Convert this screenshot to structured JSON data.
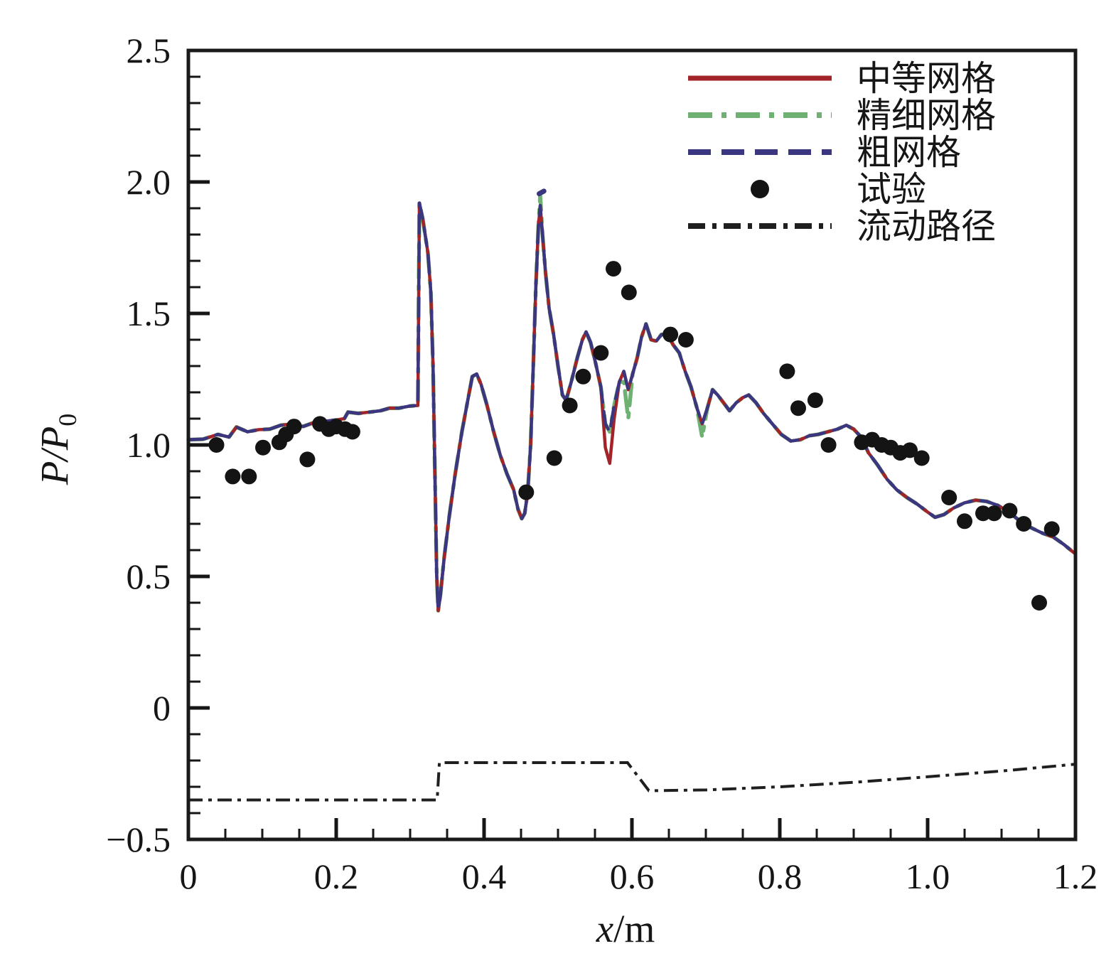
{
  "figure": {
    "background": "#ffffff",
    "frame_color": "#1a1a1a"
  },
  "chart_data": {
    "type": "line",
    "title": "",
    "xlabel": {
      "var": "x",
      "rest": "/m"
    },
    "ylabel": {
      "main": "P/P",
      "sub": "0"
    },
    "xlim": [
      0,
      1.2
    ],
    "ylim": [
      -0.5,
      2.5
    ],
    "grid": "off",
    "legend_position": "top-right-inside",
    "x_tick_labels": [
      {
        "v": 0,
        "t": "0"
      },
      {
        "v": 0.2,
        "t": "0.2"
      },
      {
        "v": 0.4,
        "t": "0.4"
      },
      {
        "v": 0.6,
        "t": "0.6"
      },
      {
        "v": 0.8,
        "t": "0.8"
      },
      {
        "v": 1.0,
        "t": "1.0"
      },
      {
        "v": 1.2,
        "t": "1.2"
      }
    ],
    "y_tick_labels": [
      {
        "v": 2.5,
        "t": "2.5"
      },
      {
        "v": 2.0,
        "t": "2.0"
      },
      {
        "v": 1.5,
        "t": "1.5"
      },
      {
        "v": 1.0,
        "t": "1.0"
      },
      {
        "v": 0.5,
        "t": "0.5"
      },
      {
        "v": 0,
        "t": "0"
      },
      {
        "v": -0.5,
        "t": "−0.5"
      }
    ],
    "x_minor_step": 0.05,
    "y_minor_step": 0.1,
    "base_curve": [
      [
        0.0,
        1.02
      ],
      [
        0.02,
        1.022
      ],
      [
        0.04,
        1.04
      ],
      [
        0.055,
        1.03
      ],
      [
        0.065,
        1.068
      ],
      [
        0.08,
        1.05
      ],
      [
        0.095,
        1.058
      ],
      [
        0.11,
        1.06
      ],
      [
        0.125,
        1.075
      ],
      [
        0.14,
        1.08
      ],
      [
        0.155,
        1.07
      ],
      [
        0.17,
        1.085
      ],
      [
        0.185,
        1.09
      ],
      [
        0.2,
        1.095
      ],
      [
        0.211,
        1.1
      ],
      [
        0.216,
        1.125
      ],
      [
        0.23,
        1.12
      ],
      [
        0.245,
        1.125
      ],
      [
        0.26,
        1.13
      ],
      [
        0.272,
        1.14
      ],
      [
        0.285,
        1.14
      ],
      [
        0.3,
        1.148
      ],
      [
        0.3105,
        1.15
      ],
      [
        0.3125,
        1.92
      ],
      [
        0.317,
        1.86
      ],
      [
        0.324,
        1.73
      ],
      [
        0.328,
        1.58
      ],
      [
        0.331,
        1.3
      ],
      [
        0.3335,
        0.9
      ],
      [
        0.336,
        0.5
      ],
      [
        0.338,
        0.37
      ],
      [
        0.341,
        0.43
      ],
      [
        0.346,
        0.57
      ],
      [
        0.353,
        0.73
      ],
      [
        0.361,
        0.89
      ],
      [
        0.37,
        1.05
      ],
      [
        0.378,
        1.17
      ],
      [
        0.384,
        1.26
      ],
      [
        0.39,
        1.27
      ],
      [
        0.396,
        1.23
      ],
      [
        0.404,
        1.15
      ],
      [
        0.413,
        1.05
      ],
      [
        0.422,
        0.96
      ],
      [
        0.431,
        0.89
      ],
      [
        0.44,
        0.83
      ],
      [
        0.446,
        0.755
      ],
      [
        0.451,
        0.72
      ],
      [
        0.455,
        0.74
      ],
      [
        0.459,
        0.82
      ],
      [
        0.463,
        1.0
      ],
      [
        0.4665,
        1.3
      ],
      [
        0.47,
        1.6
      ],
      [
        0.4735,
        1.83
      ],
      [
        0.476,
        1.91
      ],
      [
        0.479,
        1.8
      ],
      [
        0.483,
        1.66
      ],
      [
        0.488,
        1.52
      ],
      [
        0.494,
        1.42
      ],
      [
        0.5,
        1.3
      ],
      [
        0.506,
        1.19
      ],
      [
        0.511,
        1.17
      ],
      [
        0.518,
        1.24
      ],
      [
        0.526,
        1.33
      ],
      [
        0.533,
        1.4
      ],
      [
        0.538,
        1.43
      ],
      [
        0.544,
        1.39
      ],
      [
        0.551,
        1.31
      ],
      [
        0.558,
        1.22
      ],
      [
        0.564,
        1.08
      ],
      [
        0.57,
        1.05
      ],
      [
        0.576,
        1.15
      ],
      [
        0.583,
        1.24
      ],
      [
        0.589,
        1.28
      ],
      [
        0.595,
        1.21
      ],
      [
        0.601,
        1.27
      ],
      [
        0.607,
        1.33
      ],
      [
        0.613,
        1.41
      ],
      [
        0.619,
        1.46
      ],
      [
        0.626,
        1.4
      ],
      [
        0.633,
        1.395
      ],
      [
        0.64,
        1.42
      ],
      [
        0.648,
        1.42
      ],
      [
        0.656,
        1.38
      ],
      [
        0.664,
        1.35
      ],
      [
        0.672,
        1.28
      ],
      [
        0.68,
        1.22
      ],
      [
        0.688,
        1.14
      ],
      [
        0.695,
        1.08
      ],
      [
        0.702,
        1.14
      ],
      [
        0.709,
        1.21
      ],
      [
        0.716,
        1.19
      ],
      [
        0.724,
        1.16
      ],
      [
        0.732,
        1.13
      ],
      [
        0.741,
        1.16
      ],
      [
        0.75,
        1.18
      ],
      [
        0.758,
        1.19
      ],
      [
        0.768,
        1.16
      ],
      [
        0.778,
        1.12
      ],
      [
        0.79,
        1.08
      ],
      [
        0.802,
        1.04
      ],
      [
        0.815,
        1.015
      ],
      [
        0.828,
        1.02
      ],
      [
        0.84,
        1.035
      ],
      [
        0.852,
        1.04
      ],
      [
        0.865,
        1.05
      ],
      [
        0.878,
        1.06
      ],
      [
        0.89,
        1.075
      ],
      [
        0.9,
        1.06
      ],
      [
        0.91,
        1.03
      ],
      [
        0.92,
        0.97
      ],
      [
        0.932,
        0.925
      ],
      [
        0.945,
        0.87
      ],
      [
        0.958,
        0.83
      ],
      [
        0.972,
        0.8
      ],
      [
        0.986,
        0.775
      ],
      [
        1.0,
        0.745
      ],
      [
        1.01,
        0.725
      ],
      [
        1.022,
        0.735
      ],
      [
        1.035,
        0.76
      ],
      [
        1.05,
        0.78
      ],
      [
        1.065,
        0.79
      ],
      [
        1.08,
        0.785
      ],
      [
        1.095,
        0.77
      ],
      [
        1.11,
        0.745
      ],
      [
        1.125,
        0.71
      ],
      [
        1.14,
        0.685
      ],
      [
        1.155,
        0.665
      ],
      [
        1.17,
        0.65
      ],
      [
        1.185,
        0.62
      ],
      [
        1.2,
        0.585
      ]
    ],
    "series": [
      {
        "name": "精细网格",
        "color": "#6fb173",
        "dash": "dashdot",
        "width": 5.5,
        "overrides": [
          [
            0.476,
            1.95
          ],
          [
            0.589,
            1.24
          ],
          [
            0.595,
            1.1
          ],
          [
            0.695,
            1.03
          ]
        ]
      },
      {
        "name": "中等网格",
        "color": "#a32428",
        "dash": "solid",
        "width": 4.5,
        "overrides": [
          [
            0.564,
            0.99
          ],
          [
            0.57,
            0.93
          ],
          [
            0.576,
            1.1
          ]
        ]
      },
      {
        "name": "粗网格",
        "color": "#3b3680",
        "dash": "dashed",
        "width": 4.5,
        "overrides": [],
        "tip_segment": [
          [
            0.4745,
            1.955
          ],
          [
            0.481,
            1.965
          ]
        ]
      }
    ],
    "experiment": {
      "name": "试验",
      "color": "#141414",
      "marker_radius": 11,
      "points": [
        [
          0.038,
          1.0
        ],
        [
          0.06,
          0.88
        ],
        [
          0.082,
          0.88
        ],
        [
          0.101,
          0.99
        ],
        [
          0.123,
          1.01
        ],
        [
          0.132,
          1.04
        ],
        [
          0.143,
          1.07
        ],
        [
          0.161,
          0.945
        ],
        [
          0.178,
          1.08
        ],
        [
          0.19,
          1.06
        ],
        [
          0.2,
          1.07
        ],
        [
          0.212,
          1.06
        ],
        [
          0.222,
          1.05
        ],
        [
          0.457,
          0.82
        ],
        [
          0.495,
          0.95
        ],
        [
          0.516,
          1.15
        ],
        [
          0.534,
          1.26
        ],
        [
          0.558,
          1.35
        ],
        [
          0.575,
          1.67
        ],
        [
          0.596,
          1.58
        ],
        [
          0.652,
          1.42
        ],
        [
          0.673,
          1.4
        ],
        [
          0.81,
          1.28
        ],
        [
          0.825,
          1.14
        ],
        [
          0.848,
          1.17
        ],
        [
          0.866,
          1.0
        ],
        [
          0.911,
          1.01
        ],
        [
          0.925,
          1.02
        ],
        [
          0.938,
          1.0
        ],
        [
          0.95,
          0.99
        ],
        [
          0.963,
          0.97
        ],
        [
          0.976,
          0.98
        ],
        [
          0.992,
          0.95
        ],
        [
          1.029,
          0.8
        ],
        [
          1.05,
          0.71
        ],
        [
          1.075,
          0.74
        ],
        [
          1.09,
          0.74
        ],
        [
          1.111,
          0.75
        ],
        [
          1.13,
          0.7
        ],
        [
          1.168,
          0.68
        ],
        [
          1.151,
          0.4
        ]
      ]
    },
    "flow_path": {
      "name": "流动路径",
      "color": "#1f1f1f",
      "width": 4,
      "points": [
        [
          0.0,
          -0.35
        ],
        [
          0.3365,
          -0.35
        ],
        [
          0.3395,
          -0.208
        ],
        [
          0.594,
          -0.208
        ],
        [
          0.623,
          -0.315
        ],
        [
          0.7,
          -0.312
        ],
        [
          0.8,
          -0.3
        ],
        [
          0.9,
          -0.283
        ],
        [
          1.0,
          -0.262
        ],
        [
          1.1,
          -0.24
        ],
        [
          1.2,
          -0.214
        ]
      ]
    },
    "legend": {
      "entries": [
        {
          "label": "中等网格",
          "kind": "line",
          "dash": "solid",
          "color": "#a32428"
        },
        {
          "label": "精细网格",
          "kind": "line",
          "dash": "dashdot",
          "color": "#6fb173"
        },
        {
          "label": "粗网格",
          "kind": "line",
          "dash": "dashed",
          "color": "#3b3680"
        },
        {
          "label": "试验",
          "kind": "marker",
          "dash": "none",
          "color": "#141414"
        },
        {
          "label": "流动路径",
          "kind": "line",
          "dash": "flowdash",
          "color": "#1f1f1f"
        }
      ]
    }
  }
}
